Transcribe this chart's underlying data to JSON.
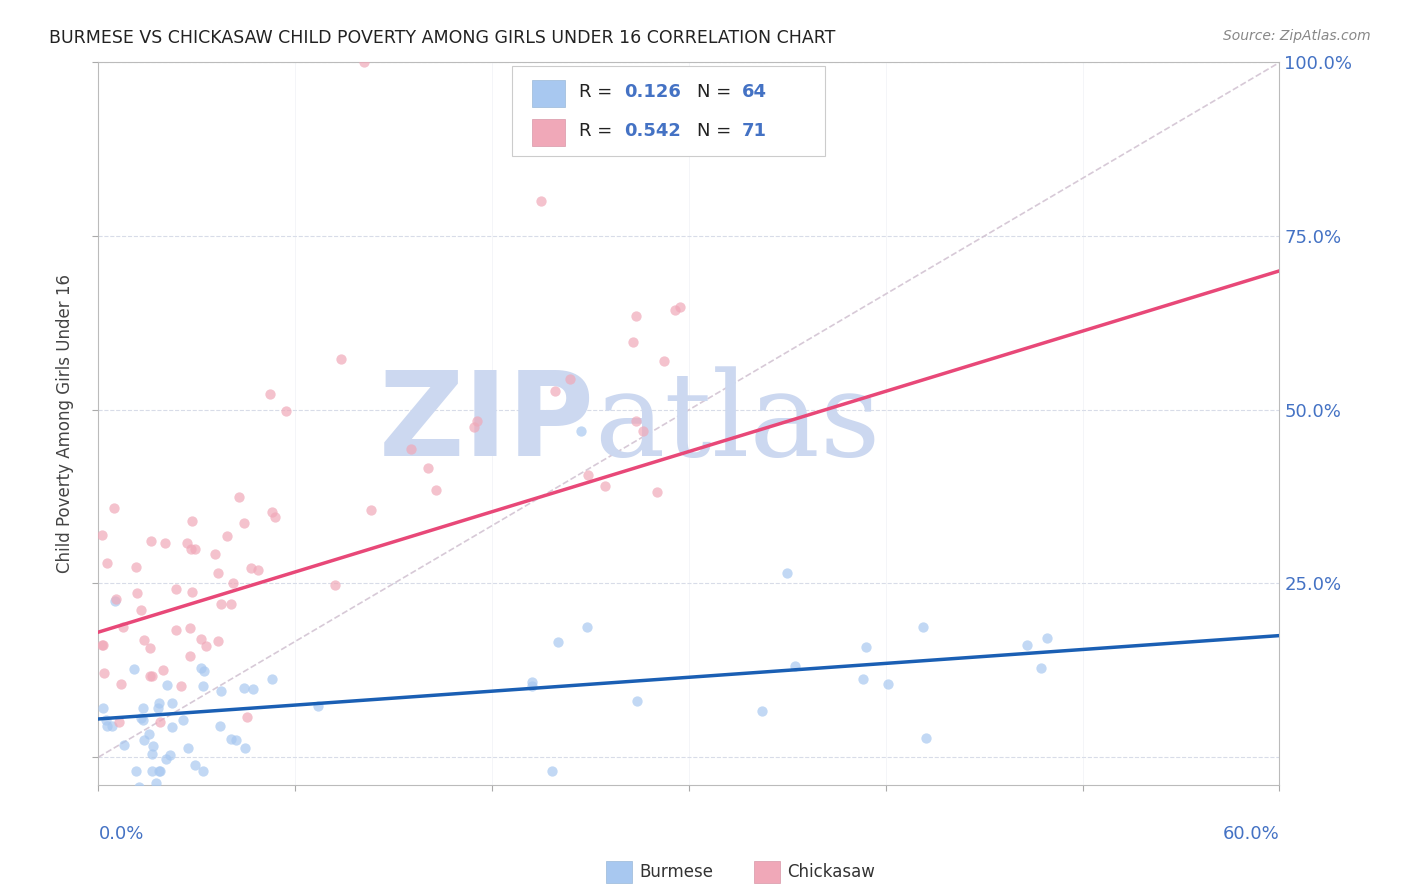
{
  "title": "BURMESE VS CHICKASAW CHILD POVERTY AMONG GIRLS UNDER 16 CORRELATION CHART",
  "source": "Source: ZipAtlas.com",
  "ylabel": "Child Poverty Among Girls Under 16",
  "xmin": 0.0,
  "xmax": 0.6,
  "ymin": 0.0,
  "ymax": 1.0,
  "burmese_R": 0.126,
  "burmese_N": 64,
  "chickasaw_R": 0.542,
  "chickasaw_N": 71,
  "burmese_scatter_color": "#a8c8f0",
  "chickasaw_scatter_color": "#f0a8b8",
  "burmese_line_color": "#1a5fb4",
  "chickasaw_line_color": "#e84878",
  "ref_line_color": "#d0c0d0",
  "grid_color": "#d8dce8",
  "background_color": "#ffffff",
  "watermark_zip_color": "#c8d8f0",
  "watermark_atlas_color": "#c8d8f0",
  "title_color": "#222222",
  "source_color": "#888888",
  "axis_label_color": "#4472c4",
  "ylabel_color": "#444444",
  "legend_text_color": "#222222",
  "legend_value_color": "#4472c4"
}
